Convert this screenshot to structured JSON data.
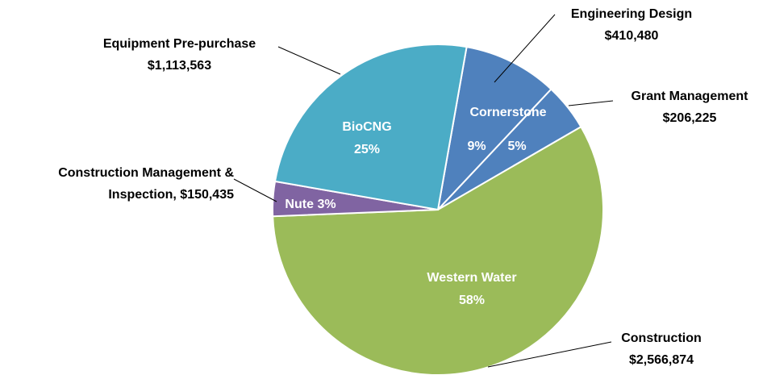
{
  "chart_data": {
    "type": "pie",
    "categories": [
      "Engineering Design",
      "Grant Management",
      "Construction",
      "Construction Management & Inspection,",
      "Equipment Pre-purchase"
    ],
    "values": [
      410480,
      206225,
      2566874,
      150435,
      1113563
    ],
    "value_labels": [
      "$410,480",
      "$206,225",
      "$2,566,874",
      "$150,435",
      "$1,113,563"
    ],
    "percents": [
      9,
      5,
      58,
      3,
      25
    ],
    "percent_labels": [
      "9%",
      "5%",
      "58%",
      "3%",
      "25%"
    ],
    "group_labels": [
      "Cornerstone",
      null,
      "Western Water",
      "Nute",
      "BioCNG"
    ],
    "colors": [
      "#4f81bd",
      "#4f81bd",
      "#9bbb59",
      "#8064a2",
      "#4bacc6"
    ]
  }
}
